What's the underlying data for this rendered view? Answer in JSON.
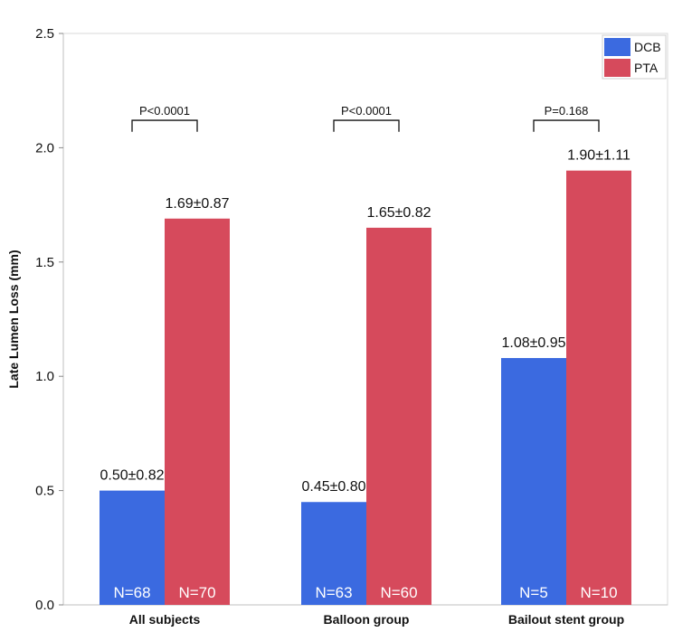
{
  "chart_data": {
    "type": "bar",
    "title": "",
    "xlabel": "",
    "ylabel": "Late Lumen Loss (mm)",
    "ylim": [
      0,
      2.5
    ],
    "yticks": [
      "0.0",
      "0.5",
      "1.0",
      "1.5",
      "2.0",
      "2.5"
    ],
    "categories": [
      "All subjects",
      "Balloon group",
      "Bailout stent group"
    ],
    "series": [
      {
        "name": "DCB",
        "color": "#3B6AE0",
        "values": [
          0.5,
          0.45,
          1.08
        ],
        "labels": [
          "0.50±0.82",
          "0.45±0.80",
          "1.08±0.95"
        ],
        "n_labels": [
          "N=68",
          "N=63",
          "N=5"
        ]
      },
      {
        "name": "PTA",
        "color": "#D64A5C",
        "values": [
          1.69,
          1.65,
          1.9
        ],
        "labels": [
          "1.69±0.87",
          "1.65±0.82",
          "1.90±1.11"
        ],
        "n_labels": [
          "N=70",
          "N=60",
          "N=10"
        ]
      }
    ],
    "p_values": [
      "P<0.0001",
      "P<0.0001",
      "P=0.168"
    ],
    "legend": {
      "position": "top-right",
      "entries": [
        "DCB",
        "PTA"
      ]
    },
    "grid": false
  }
}
